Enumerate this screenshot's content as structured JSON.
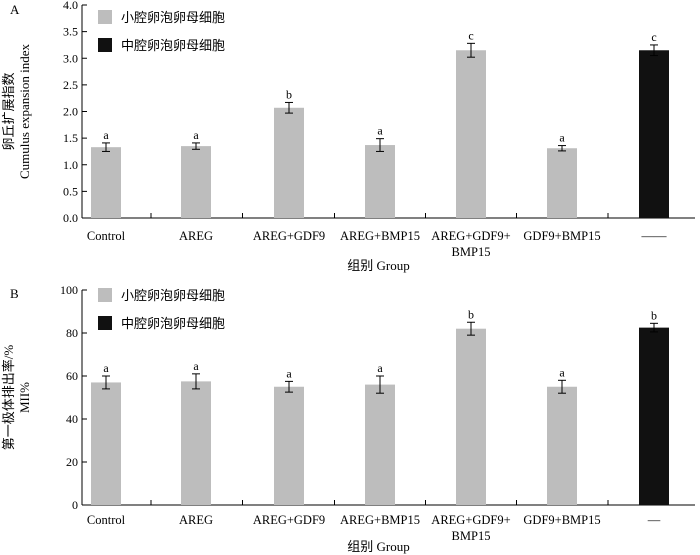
{
  "colors": {
    "small": "#bdbdbd",
    "medium": "#111111",
    "axis": "#000000"
  },
  "legend": [
    {
      "label": "小腔卵泡卵母细胞",
      "color": "#bdbdbd"
    },
    {
      "label": "中腔卵泡卵母细胞",
      "color": "#111111"
    }
  ],
  "chart_data": [
    {
      "type": "bar",
      "panel": "A",
      "categories": [
        [
          "Control"
        ],
        [
          "AREG"
        ],
        [
          "AREG+GDF9"
        ],
        [
          "AREG+BMP15"
        ],
        [
          "AREG+GDF9+",
          "BMP15"
        ],
        [
          "GDF9+BMP15"
        ],
        [
          "——"
        ]
      ],
      "series": [
        {
          "name": "小腔卵泡卵母细胞",
          "values": [
            1.33,
            1.35,
            2.07,
            1.37,
            3.15,
            1.31,
            null
          ],
          "errors": [
            0.08,
            0.06,
            0.1,
            0.12,
            0.13,
            0.05,
            null
          ],
          "letters": [
            "a",
            "a",
            "b",
            "a",
            "c",
            "a",
            null
          ]
        },
        {
          "name": "中腔卵泡卵母细胞",
          "values": [
            null,
            null,
            null,
            null,
            null,
            null,
            3.15
          ],
          "errors": [
            null,
            null,
            null,
            null,
            null,
            null,
            0.1
          ],
          "letters": [
            null,
            null,
            null,
            null,
            null,
            null,
            "c"
          ]
        }
      ],
      "ylabel": [
        "卵丘扩展指数",
        "Cumulus expansion index"
      ],
      "xlabel": "组别 Group",
      "ylim": [
        0,
        4.0
      ],
      "yticks": [
        "0.0",
        "0.5",
        "1.0",
        "1.5",
        "2.0",
        "2.5",
        "3.0",
        "3.5",
        "4.0"
      ],
      "ytick_values": [
        0,
        0.5,
        1.0,
        1.5,
        2.0,
        2.5,
        3.0,
        3.5,
        4.0
      ],
      "legend_position": "top-left",
      "grid": false
    },
    {
      "type": "bar",
      "panel": "B",
      "categories": [
        [
          "Control"
        ],
        [
          "AREG"
        ],
        [
          "AREG+GDF9"
        ],
        [
          "AREG+BMP15"
        ],
        [
          "AREG+GDF9+",
          "BMP15"
        ],
        [
          "GDF9+BMP15"
        ],
        [
          "—"
        ]
      ],
      "series": [
        {
          "name": "小腔卵泡卵母细胞",
          "values": [
            57,
            57.5,
            55,
            56,
            82,
            55,
            null
          ],
          "errors": [
            3,
            3.5,
            2.5,
            4,
            3,
            3,
            null
          ],
          "letters": [
            "a",
            "a",
            "a",
            "a",
            "b",
            "a",
            null
          ]
        },
        {
          "name": "中腔卵泡卵母细胞",
          "values": [
            null,
            null,
            null,
            null,
            null,
            null,
            82.5
          ],
          "errors": [
            null,
            null,
            null,
            null,
            null,
            null,
            2
          ],
          "letters": [
            null,
            null,
            null,
            null,
            null,
            null,
            "b"
          ]
        }
      ],
      "ylabel": [
        "第一极体排出率/%",
        "MII%"
      ],
      "xlabel": "组别 Group",
      "ylim": [
        0,
        100
      ],
      "yticks": [
        "0",
        "20",
        "40",
        "60",
        "80",
        "100"
      ],
      "ytick_values": [
        0,
        20,
        40,
        60,
        80,
        100
      ],
      "legend_position": "top-left",
      "grid": false
    }
  ]
}
